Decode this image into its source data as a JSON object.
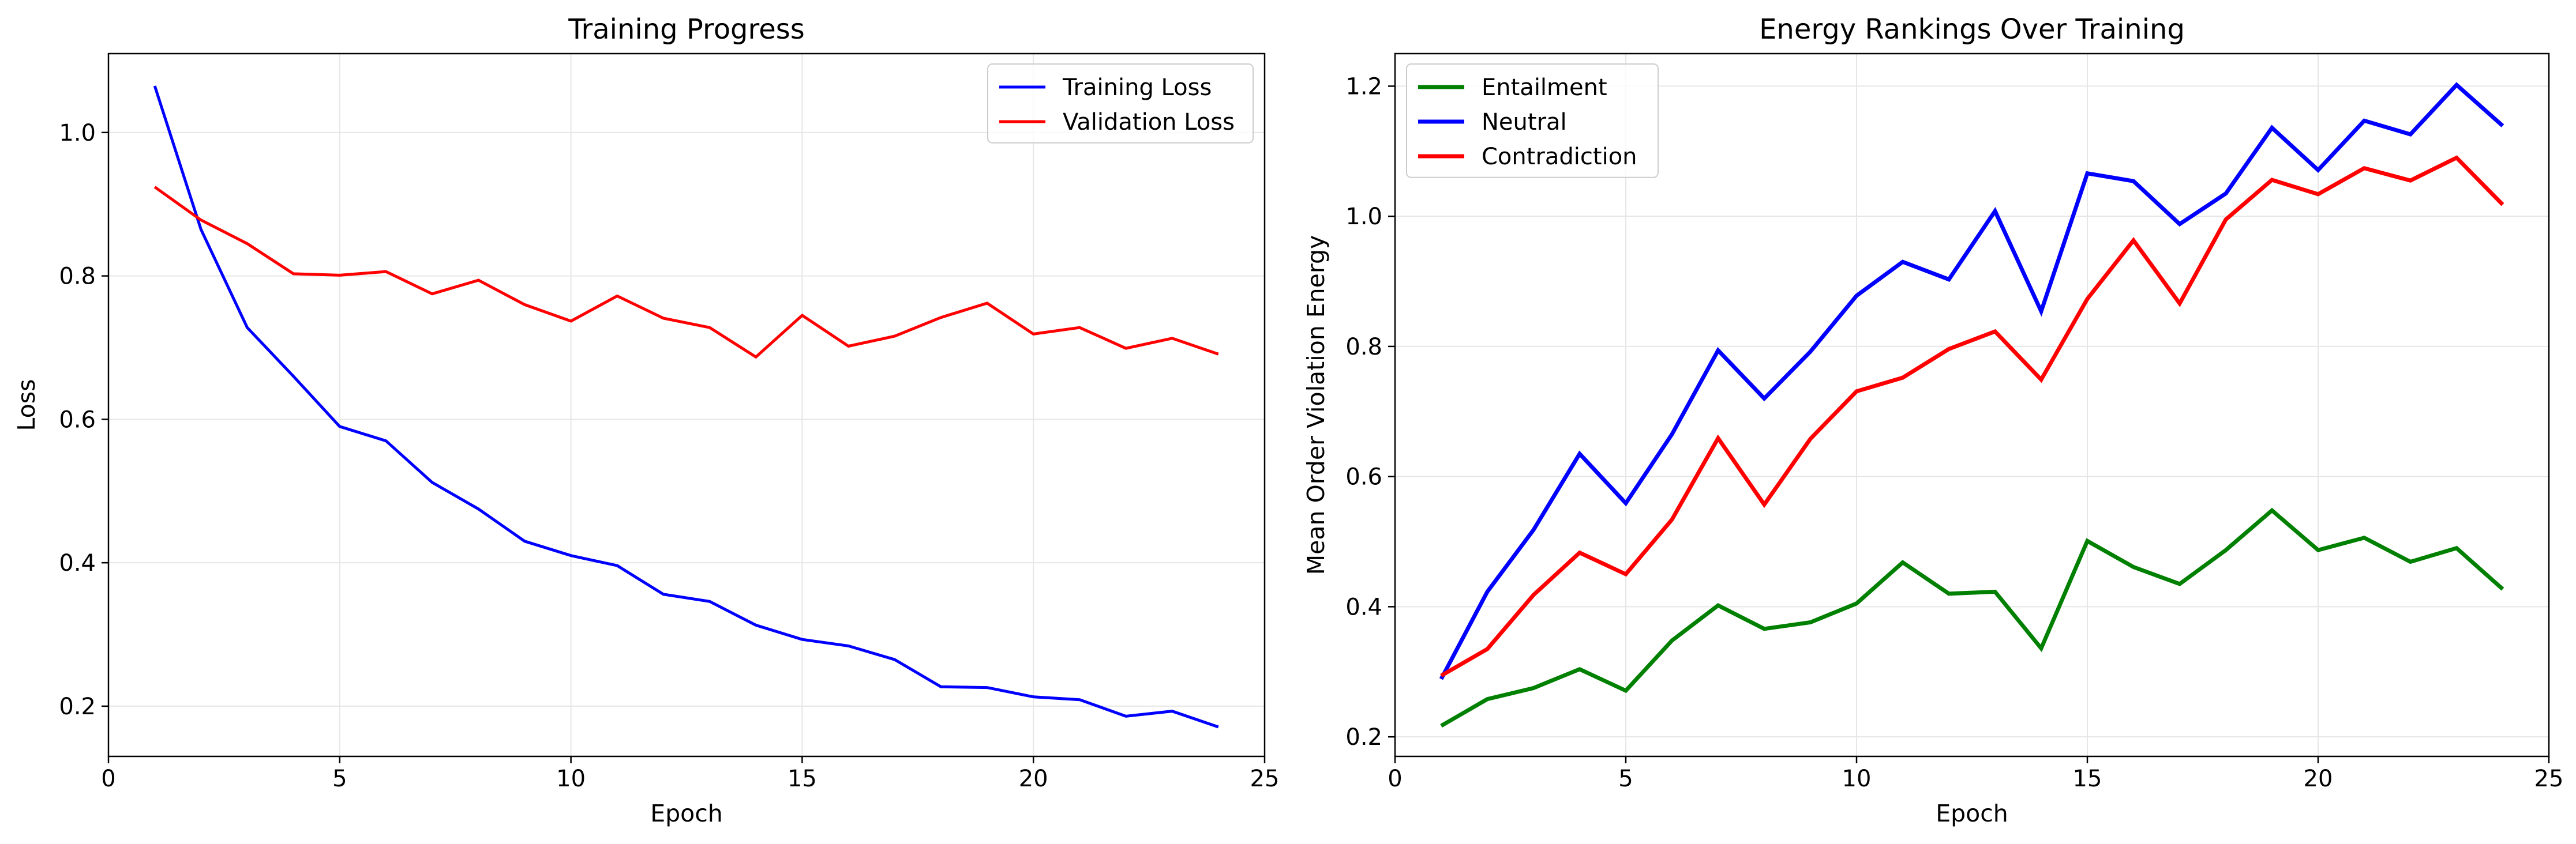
{
  "figure": {
    "background": "#ffffff",
    "grid_color": "#e6e6e6"
  },
  "chart_data": [
    {
      "type": "line",
      "title": "Training Progress",
      "xlabel": "Epoch",
      "ylabel": "Loss",
      "xlim": [
        0,
        25
      ],
      "ylim": [
        0.13,
        1.11
      ],
      "xticks": [
        0,
        5,
        10,
        15,
        20,
        25
      ],
      "yticks": [
        0.2,
        0.4,
        0.6,
        0.8,
        1.0
      ],
      "xtick_labels": [
        "0",
        "5",
        "10",
        "15",
        "20",
        "25"
      ],
      "ytick_labels": [
        "0.2",
        "0.4",
        "0.6",
        "0.8",
        "1.0"
      ],
      "grid": true,
      "legend": "upper right",
      "x": [
        1,
        2,
        3,
        4,
        5,
        6,
        7,
        8,
        9,
        10,
        11,
        12,
        13,
        14,
        15,
        16,
        17,
        18,
        19,
        20,
        21,
        22,
        23,
        24
      ],
      "series": [
        {
          "name": "Training Loss",
          "color": "#0000ff",
          "values": [
            1.065,
            0.865,
            0.728,
            0.66,
            0.59,
            0.57,
            0.512,
            0.475,
            0.43,
            0.41,
            0.396,
            0.356,
            0.346,
            0.313,
            0.293,
            0.284,
            0.265,
            0.227,
            0.226,
            0.213,
            0.209,
            0.186,
            0.193,
            0.171
          ]
        },
        {
          "name": "Validation Loss",
          "color": "#ff0000",
          "values": [
            0.924,
            0.878,
            0.845,
            0.803,
            0.801,
            0.806,
            0.775,
            0.794,
            0.76,
            0.737,
            0.772,
            0.741,
            0.728,
            0.687,
            0.745,
            0.702,
            0.716,
            0.742,
            0.762,
            0.719,
            0.728,
            0.699,
            0.713,
            0.691
          ]
        }
      ]
    },
    {
      "type": "line",
      "title": "Energy Rankings Over Training",
      "xlabel": "Epoch",
      "ylabel": "Mean Order Violation Energy",
      "xlim": [
        0,
        25
      ],
      "ylim": [
        0.17,
        1.25
      ],
      "xticks": [
        0,
        5,
        10,
        15,
        20,
        25
      ],
      "yticks": [
        0.2,
        0.4,
        0.6,
        0.8,
        1.0,
        1.2
      ],
      "xtick_labels": [
        "0",
        "5",
        "10",
        "15",
        "20",
        "25"
      ],
      "ytick_labels": [
        "0.2",
        "0.4",
        "0.6",
        "0.8",
        "1.0",
        "1.2"
      ],
      "grid": true,
      "legend": "upper left",
      "x": [
        1,
        2,
        3,
        4,
        5,
        6,
        7,
        8,
        9,
        10,
        11,
        12,
        13,
        14,
        15,
        16,
        17,
        18,
        19,
        20,
        21,
        22,
        23,
        24
      ],
      "series": [
        {
          "name": "Entailment",
          "color": "#008000",
          "values": [
            0.217,
            0.258,
            0.275,
            0.304,
            0.271,
            0.348,
            0.402,
            0.366,
            0.376,
            0.405,
            0.468,
            0.42,
            0.423,
            0.336,
            0.501,
            0.461,
            0.435,
            0.487,
            0.548,
            0.487,
            0.506,
            0.469,
            0.49,
            0.427
          ]
        },
        {
          "name": "Neutral",
          "color": "#0000ff",
          "values": [
            0.289,
            0.423,
            0.518,
            0.635,
            0.559,
            0.665,
            0.794,
            0.72,
            0.792,
            0.878,
            0.93,
            0.903,
            1.008,
            0.854,
            1.066,
            1.054,
            0.988,
            1.035,
            1.136,
            1.071,
            1.147,
            1.126,
            1.202,
            1.139
          ]
        },
        {
          "name": "Contradiction",
          "color": "#ff0000",
          "values": [
            0.294,
            0.335,
            0.418,
            0.483,
            0.45,
            0.534,
            0.659,
            0.557,
            0.658,
            0.731,
            0.752,
            0.796,
            0.823,
            0.749,
            0.873,
            0.963,
            0.866,
            0.995,
            1.056,
            1.034,
            1.074,
            1.055,
            1.09,
            1.018
          ]
        }
      ]
    }
  ]
}
